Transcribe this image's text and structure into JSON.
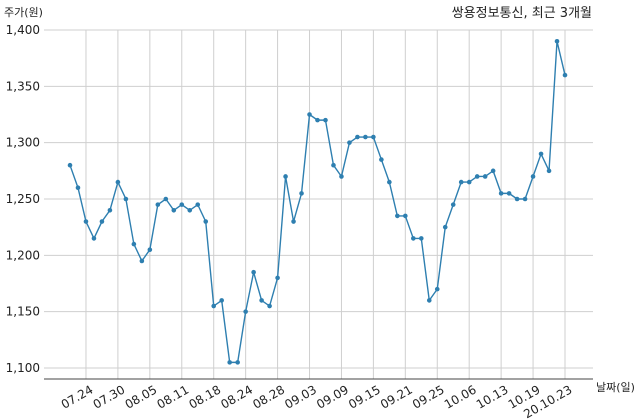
{
  "chart_data": {
    "type": "line",
    "title": "쌍용정보통신, 최근 3개월",
    "ylabel": "주가(원)",
    "xlabel": "날짜(일)",
    "ylim": [
      1100,
      1400
    ],
    "yticks": [
      1100,
      1150,
      1200,
      1250,
      1300,
      1350,
      1400
    ],
    "ytick_labels": [
      "1,100",
      "1,150",
      "1,200",
      "1,250",
      "1,300",
      "1,350",
      "1,400"
    ],
    "grid": true,
    "line_color": "#2e7fb0",
    "xtick_labels": [
      {
        "label": "07.24",
        "index": 2
      },
      {
        "label": "07.30",
        "index": 6
      },
      {
        "label": "08.05",
        "index": 10
      },
      {
        "label": "08.11",
        "index": 14
      },
      {
        "label": "08.18",
        "index": 18
      },
      {
        "label": "08.24",
        "index": 22
      },
      {
        "label": "08.28",
        "index": 26
      },
      {
        "label": "09.03",
        "index": 30
      },
      {
        "label": "09.09",
        "index": 34
      },
      {
        "label": "09.15",
        "index": 38
      },
      {
        "label": "09.21",
        "index": 42
      },
      {
        "label": "09.25",
        "index": 46
      },
      {
        "label": "10.06",
        "index": 50
      },
      {
        "label": "10.13",
        "index": 54
      },
      {
        "label": "10.19",
        "index": 58
      },
      {
        "label": "20.10.23",
        "index": 62
      }
    ],
    "series": [
      {
        "values": [
          1280,
          1260,
          1230,
          1215,
          1230,
          1240,
          1265,
          1250,
          1210,
          1195,
          1205,
          1245,
          1250,
          1240,
          1245,
          1240,
          1245,
          1230,
          1155,
          1160,
          1105,
          1105,
          1150,
          1185,
          1160,
          1155,
          1180,
          1270,
          1230,
          1255,
          1325,
          1320,
          1320,
          1280,
          1270,
          1300,
          1305,
          1305,
          1305,
          1285,
          1265,
          1235,
          1235,
          1215,
          1215,
          1160,
          1170,
          1225,
          1245,
          1265,
          1265,
          1270,
          1270,
          1275,
          1255,
          1255,
          1250,
          1250,
          1270,
          1290,
          1275,
          1390,
          1360
        ]
      }
    ]
  }
}
